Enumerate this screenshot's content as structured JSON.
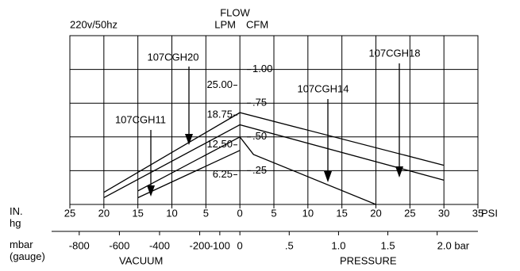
{
  "chart_data": {
    "type": "line",
    "subtitle": "220v/50hz",
    "y_title": "FLOW",
    "y_label": "CFM",
    "y2_label": "LPM",
    "x_label_left": "IN. hg",
    "x_label_right": "PSI",
    "x2_label": "mbar (gauge)",
    "x2_label_left": "VACUUM",
    "x2_label_right": "PRESSURE",
    "xlim": [
      -25,
      35
    ],
    "xticks": [
      {
        "value": -25,
        "label": "25"
      },
      {
        "value": -20,
        "label": "20"
      },
      {
        "value": -15,
        "label": "15"
      },
      {
        "value": -10,
        "label": "10"
      },
      {
        "value": -5,
        "label": "5"
      },
      0,
      5,
      10,
      15,
      20,
      25,
      30,
      35
    ],
    "x2ticks": [
      -800,
      -600,
      -400,
      -200,
      -100,
      0,
      {
        "value": 500,
        "label": ".5"
      },
      {
        "value": 1000,
        "label": "1.0"
      },
      {
        "value": 1500,
        "label": "1.5"
      },
      {
        "value": 2000,
        "label": "2.0 bar"
      }
    ],
    "ylim": [
      0,
      1.25
    ],
    "yticks": [
      {
        "value": 0.25,
        "label": ".25"
      },
      {
        "value": 0.5,
        "label": ".50"
      },
      {
        "value": 0.75,
        "label": ".75"
      },
      {
        "value": 1,
        "label": "1.00"
      }
    ],
    "y2lim": [
      0,
      35.4
    ],
    "y2ticks": [
      6.25,
      {
        "value": 12.5,
        "label": "12.50"
      },
      18.75,
      {
        "value": 25,
        "label": "25.00"
      }
    ],
    "grid": true,
    "series": [
      {
        "name": "107CGH20",
        "color": "#000000",
        "x": [
          -20,
          0,
          30
        ],
        "values": [
          0.09,
          0.68,
          0.29
        ]
      },
      {
        "name": "107CGH18",
        "color": "#000000",
        "x": [
          -20,
          0,
          30
        ],
        "values": [
          0.05,
          0.59,
          0.18
        ]
      },
      {
        "name": "107CGH14",
        "color": "#000000",
        "x": [
          -15,
          0,
          2,
          20
        ],
        "values": [
          0.1,
          0.5,
          0.37,
          0
        ]
      },
      {
        "name": "107CGH11",
        "color": "#000000",
        "x": [
          -15,
          0
        ],
        "values": [
          0.05,
          0.4
        ]
      }
    ]
  }
}
